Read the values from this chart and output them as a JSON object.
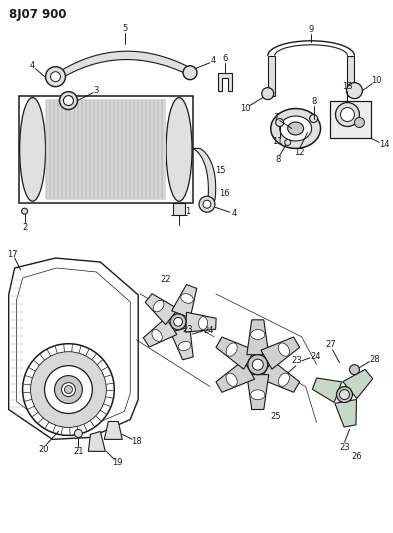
{
  "title": "8J07 900",
  "bg_color": "#ffffff",
  "line_color": "#1a1a1a",
  "fig_width": 3.93,
  "fig_height": 5.33,
  "dpi": 100,
  "gray1": "#c8c8c8",
  "gray2": "#e0e0e0",
  "gray3": "#b0b0b0"
}
